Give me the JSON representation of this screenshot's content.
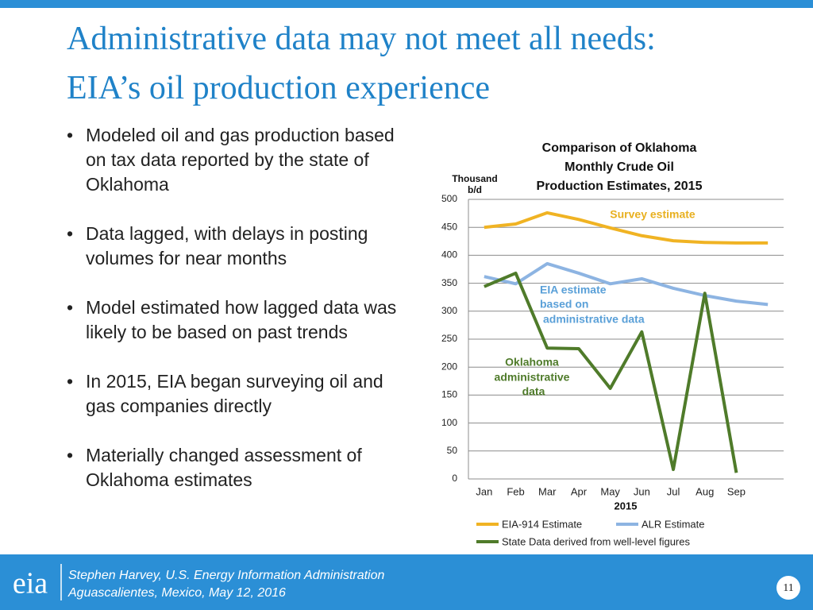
{
  "header": {
    "title": [
      "Administrative data may not meet all needs:",
      "EIA’s oil production experience"
    ]
  },
  "bullets": [
    "Modeled oil and gas production based on tax data reported by the state of Oklahoma",
    "Data lagged, with delays in posting volumes for near months",
    "Model estimated how lagged data was likely to be based on past trends",
    "In 2015, EIA began surveying oil and gas companies directly",
    "Materially changed assessment of Oklahoma estimates"
  ],
  "chart_data": {
    "type": "line",
    "title": [
      "Comparison of Oklahoma",
      "Monthly Crude Oil",
      "Production Estimates, 2015"
    ],
    "y_label": [
      "Thousand",
      "b/d"
    ],
    "x_label": "2015",
    "categories": [
      "Jan",
      "Feb",
      "Mar",
      "Apr",
      "May",
      "Jun",
      "Jul",
      "Aug",
      "Sep",
      null
    ],
    "series": [
      {
        "name": "EIA-914 Estimate",
        "color": "#f0b323",
        "values": [
          450,
          456,
          476,
          464,
          449,
          435,
          426,
          423,
          422,
          422
        ]
      },
      {
        "name": "ALR Estimate",
        "color": "#8db4e2",
        "values": [
          362,
          349,
          385,
          368,
          349,
          358,
          341,
          328,
          318,
          312
        ]
      },
      {
        "name": "State Data derived from well-level figures",
        "color": "#4f7b2a",
        "values": [
          344,
          368,
          234,
          233,
          162,
          263,
          17,
          332,
          11,
          null
        ]
      }
    ],
    "annotations": [
      {
        "text": [
          "Survey estimate"
        ],
        "color": "#e8b020"
      },
      {
        "text": [
          "EIA estimate",
          "based on",
          "administrative data"
        ],
        "color": "#5aa0d8"
      },
      {
        "text": [
          "Oklahoma",
          "administrative",
          "data"
        ],
        "color": "#4f7b2a"
      }
    ],
    "ylim": [
      0,
      500
    ],
    "yticks": [
      0,
      50,
      100,
      150,
      200,
      250,
      300,
      350,
      400,
      450,
      500
    ],
    "grid": true
  },
  "footer": {
    "logo": "eia",
    "lines": [
      "Stephen Harvey, U.S. Energy Information Administration",
      "Aguascalientes, Mexico, May 12, 2016"
    ],
    "page": "11"
  }
}
